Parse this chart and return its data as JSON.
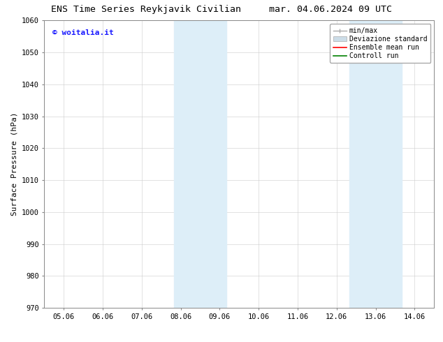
{
  "title_left": "ENS Time Series Reykjavik Civilian",
  "title_right": "mar. 04.06.2024 09 UTC",
  "ylabel": "Surface Pressure (hPa)",
  "ylim": [
    970,
    1060
  ],
  "yticks": [
    970,
    980,
    990,
    1000,
    1010,
    1020,
    1030,
    1040,
    1050,
    1060
  ],
  "xtick_labels": [
    "05.06",
    "06.06",
    "07.06",
    "08.06",
    "09.06",
    "10.06",
    "11.06",
    "12.06",
    "13.06",
    "14.06"
  ],
  "x_positions": [
    0,
    1,
    2,
    3,
    4,
    5,
    6,
    7,
    8,
    9
  ],
  "xlim": [
    -0.5,
    9.5
  ],
  "shaded_bands": [
    {
      "xmin": 2.83,
      "xmax": 4.17
    },
    {
      "xmin": 7.33,
      "xmax": 8.67
    }
  ],
  "shade_color": "#ddeef8",
  "watermark_text": "© woitalia.it",
  "watermark_color": "#1a1aff",
  "legend_items": [
    {
      "label": "min/max",
      "color": "#999999"
    },
    {
      "label": "Deviazione standard",
      "color": "#ccdde8"
    },
    {
      "label": "Ensemble mean run",
      "color": "red"
    },
    {
      "label": "Controll run",
      "color": "green"
    }
  ],
  "bg_color": "#ffffff",
  "grid_color": "#cccccc",
  "title_fontsize": 9.5,
  "label_fontsize": 8,
  "tick_fontsize": 7.5,
  "watermark_fontsize": 8,
  "legend_fontsize": 7
}
